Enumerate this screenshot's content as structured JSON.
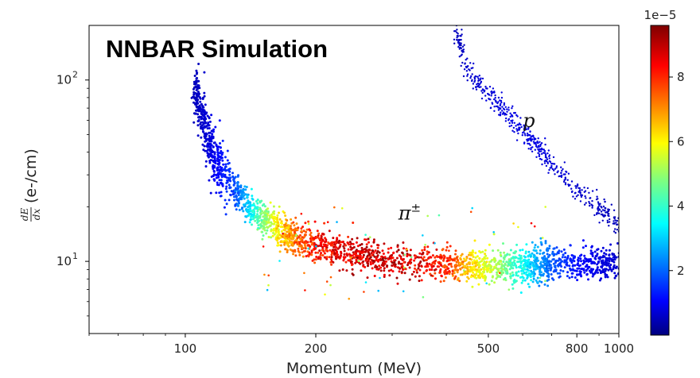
{
  "chart_data": {
    "type": "scatter",
    "title": "NNBAR Simulation",
    "xlabel": "Momentum (MeV)",
    "ylabel_fraction": {
      "numerator": "dE",
      "denominator": "dx"
    },
    "ylabel_unit": "(e-/cm)",
    "xscale": "log",
    "yscale": "log",
    "xlim": [
      60,
      1000
    ],
    "ylim": [
      4,
      200
    ],
    "x_ticks": [
      {
        "value": 100,
        "label": "100"
      },
      {
        "value": 200,
        "label": "200"
      },
      {
        "value": 500,
        "label": "500"
      },
      {
        "value": 800,
        "label": "800"
      },
      {
        "value": 1000,
        "label": "1000"
      }
    ],
    "y_ticks": [
      {
        "value": 10,
        "base": "10",
        "exp": "1"
      },
      {
        "value": 100,
        "base": "10",
        "exp": "2"
      }
    ],
    "colorbar": {
      "colormap": "jet",
      "range": [
        0,
        9.6e-05
      ],
      "offset_text": "1e−5",
      "ticks": [
        {
          "value": 2e-05,
          "label": "2"
        },
        {
          "value": 4e-05,
          "label": "4"
        },
        {
          "value": 6e-05,
          "label": "6"
        },
        {
          "value": 8e-05,
          "label": "8"
        }
      ]
    },
    "annotations": [
      {
        "text": "π",
        "sup": "±",
        "x": 310,
        "y": 17
      },
      {
        "text": "p",
        "x": 600,
        "y": 55
      }
    ],
    "bands": [
      {
        "particle": "pion",
        "points": [
          [
            105,
            90,
            6e-06
          ],
          [
            110,
            60,
            8e-06
          ],
          [
            115,
            40,
            1e-05
          ],
          [
            120,
            32,
            1.4e-05
          ],
          [
            130,
            25,
            2e-05
          ],
          [
            140,
            20,
            3.5e-05
          ],
          [
            150,
            17.5,
            5e-05
          ],
          [
            160,
            15.5,
            6.2e-05
          ],
          [
            170,
            14.2,
            7.2e-05
          ],
          [
            180,
            13.3,
            8e-05
          ],
          [
            200,
            12.2,
            8.8e-05
          ],
          [
            220,
            11.5,
            9.2e-05
          ],
          [
            250,
            10.9,
            9.4e-05
          ],
          [
            280,
            10.4,
            9.6e-05
          ],
          [
            320,
            10.0,
            9.5e-05
          ],
          [
            380,
            9.7,
            9e-05
          ],
          [
            420,
            9.6,
            8e-05
          ],
          [
            460,
            9.55,
            6.8e-05
          ],
          [
            500,
            9.5,
            6e-05
          ],
          [
            550,
            9.5,
            5e-05
          ],
          [
            600,
            9.5,
            4e-05
          ],
          [
            650,
            9.55,
            3e-05
          ],
          [
            700,
            9.6,
            2.2e-05
          ],
          [
            800,
            9.7,
            1.4e-05
          ],
          [
            900,
            9.8,
            1e-05
          ],
          [
            1000,
            9.9,
            8e-06
          ]
        ],
        "width": 0.045
      },
      {
        "particle": "proton",
        "points": [
          [
            420,
            190,
            6e-06
          ],
          [
            450,
            110,
            8e-06
          ],
          [
            500,
            85,
            9e-06
          ],
          [
            550,
            65,
            1e-05
          ],
          [
            600,
            52,
            1e-05
          ],
          [
            650,
            43,
            1e-05
          ],
          [
            700,
            34,
            9e-06
          ],
          [
            800,
            25,
            8e-06
          ],
          [
            900,
            20,
            7e-06
          ],
          [
            1000,
            15.5,
            6e-06
          ]
        ],
        "width": 0.03
      }
    ]
  }
}
